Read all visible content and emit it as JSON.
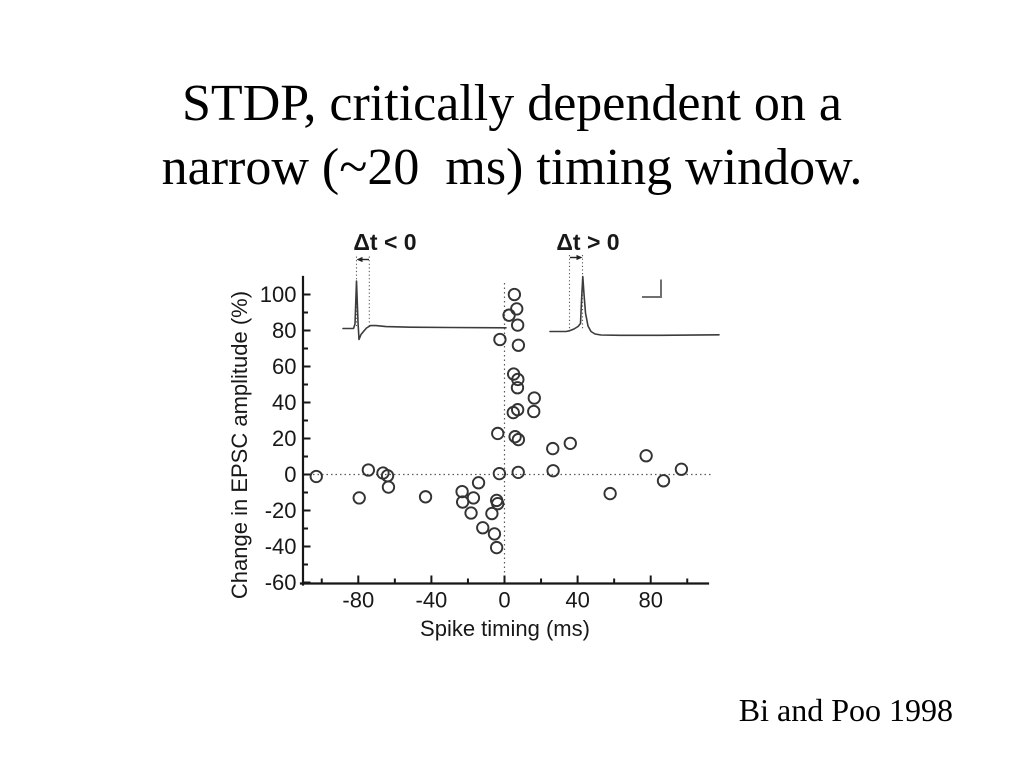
{
  "slide": {
    "title_lines": [
      "STDP, critically dependent on a",
      "narrow (~20  ms) timing window."
    ],
    "citation": "Bi and Poo 1998",
    "background_color": "#ffffff",
    "text_color": "#000000"
  },
  "chart_data": {
    "type": "scatter",
    "title": "",
    "xlabel": "Spike timing (ms)",
    "ylabel": "Change in EPSC amplitude (%)",
    "xlim": [
      -112,
      112
    ],
    "ylim": [
      -62,
      110
    ],
    "x_ticks_major": [
      -80,
      -40,
      0,
      40,
      80
    ],
    "x_ticks_minor": [
      -100,
      -60,
      -20,
      20,
      60,
      100
    ],
    "y_ticks_major": [
      100,
      80,
      60,
      40,
      20,
      0,
      -20,
      -40,
      -60
    ],
    "y_ticks_minor": [
      90,
      70,
      50,
      30,
      10,
      -10,
      -30,
      -50
    ],
    "grid": "off",
    "legend": "none",
    "marker": "open-circle",
    "zero_reference_lines": "dotted",
    "annotations": [
      {
        "id": "dt-negative",
        "text": "Δt < 0"
      },
      {
        "id": "dt-positive",
        "text": "Δt > 0"
      }
    ],
    "points": [
      [
        5.4,
        100
      ],
      [
        6.7,
        92
      ],
      [
        2.5,
        88.5
      ],
      [
        7.2,
        83
      ],
      [
        -2.5,
        75
      ],
      [
        7.6,
        71.8
      ],
      [
        5.0,
        55.8
      ],
      [
        7.3,
        52.8
      ],
      [
        7.1,
        48.2
      ],
      [
        16.3,
        42.5
      ],
      [
        7.2,
        36
      ],
      [
        16.0,
        35
      ],
      [
        4.8,
        34.4
      ],
      [
        -3.7,
        22.8
      ],
      [
        5.8,
        21
      ],
      [
        7.6,
        19.4
      ],
      [
        36,
        17.3
      ],
      [
        26.4,
        14.4
      ],
      [
        77.5,
        10.4
      ],
      [
        96.8,
        2.9
      ],
      [
        26.6,
        2.1
      ],
      [
        7.5,
        1.2
      ],
      [
        -2.8,
        0.5
      ],
      [
        -103,
        -1.1
      ],
      [
        -74.5,
        2.5
      ],
      [
        -66.5,
        0.8
      ],
      [
        -64,
        -0.7
      ],
      [
        -63.5,
        -7
      ],
      [
        -79.5,
        -13
      ],
      [
        -43.2,
        -12.4
      ],
      [
        -14.2,
        -4.6
      ],
      [
        -23.2,
        -9.5
      ],
      [
        -22.9,
        -15.3
      ],
      [
        -17,
        -13
      ],
      [
        -18.3,
        -21.4
      ],
      [
        -4.3,
        -14.4
      ],
      [
        -3.7,
        -16.2
      ],
      [
        -6.9,
        -21.7
      ],
      [
        -11.9,
        -29.6
      ],
      [
        -5.5,
        -33
      ],
      [
        -4.3,
        -40.6
      ],
      [
        87,
        -3.5
      ],
      [
        57.8,
        -10.6
      ]
    ]
  }
}
